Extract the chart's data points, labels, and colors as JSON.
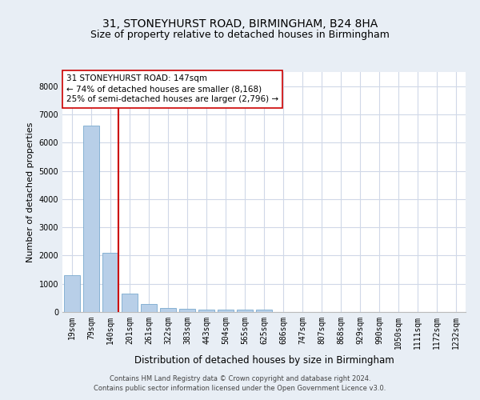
{
  "title": "31, STONEYHURST ROAD, BIRMINGHAM, B24 8HA",
  "subtitle": "Size of property relative to detached houses in Birmingham",
  "xlabel": "Distribution of detached houses by size in Birmingham",
  "ylabel": "Number of detached properties",
  "categories": [
    "19sqm",
    "79sqm",
    "140sqm",
    "201sqm",
    "261sqm",
    "322sqm",
    "383sqm",
    "443sqm",
    "504sqm",
    "565sqm",
    "625sqm",
    "686sqm",
    "747sqm",
    "807sqm",
    "868sqm",
    "929sqm",
    "990sqm",
    "1050sqm",
    "1111sqm",
    "1172sqm",
    "1232sqm"
  ],
  "values": [
    1300,
    6600,
    2090,
    660,
    290,
    140,
    110,
    85,
    85,
    90,
    85,
    0,
    0,
    0,
    0,
    0,
    0,
    0,
    0,
    0,
    0
  ],
  "bar_color": "#b8cfe8",
  "bar_edge_color": "#7aaace",
  "subject_bar_index": 2,
  "subject_line_color": "#cc0000",
  "annotation_line1": "31 STONEYHURST ROAD: 147sqm",
  "annotation_line2": "← 74% of detached houses are smaller (8,168)",
  "annotation_line3": "25% of semi-detached houses are larger (2,796) →",
  "annotation_box_facecolor": "#ffffff",
  "annotation_box_edgecolor": "#cc0000",
  "ylim": [
    0,
    8500
  ],
  "yticks": [
    0,
    1000,
    2000,
    3000,
    4000,
    5000,
    6000,
    7000,
    8000
  ],
  "footer_line1": "Contains HM Land Registry data © Crown copyright and database right 2024.",
  "footer_line2": "Contains public sector information licensed under the Open Government Licence v3.0.",
  "fig_bg_color": "#e8eef5",
  "plot_bg_color": "#ffffff",
  "grid_color": "#d0d8e8",
  "title_fontsize": 10,
  "subtitle_fontsize": 9,
  "tick_fontsize": 7,
  "ylabel_fontsize": 8,
  "xlabel_fontsize": 8.5,
  "annotation_fontsize": 7.5,
  "footer_fontsize": 6
}
